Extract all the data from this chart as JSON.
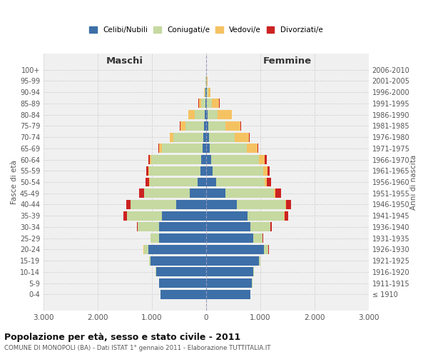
{
  "age_groups": [
    "100+",
    "95-99",
    "90-94",
    "85-89",
    "80-84",
    "75-79",
    "70-74",
    "65-69",
    "60-64",
    "55-59",
    "50-54",
    "45-49",
    "40-44",
    "35-39",
    "30-34",
    "25-29",
    "20-24",
    "15-19",
    "10-14",
    "5-9",
    "0-4"
  ],
  "birth_years": [
    "≤ 1910",
    "1911-1915",
    "1916-1920",
    "1921-1925",
    "1926-1930",
    "1931-1935",
    "1936-1940",
    "1941-1945",
    "1946-1950",
    "1951-1955",
    "1956-1960",
    "1961-1965",
    "1966-1970",
    "1971-1975",
    "1976-1980",
    "1981-1985",
    "1986-1990",
    "1991-1995",
    "1996-2000",
    "2001-2005",
    "2006-2010"
  ],
  "males_celibi": [
    2,
    3,
    8,
    15,
    25,
    35,
    50,
    70,
    90,
    110,
    150,
    300,
    550,
    820,
    870,
    870,
    1070,
    1020,
    920,
    870,
    840
  ],
  "males_coniugati": [
    1,
    5,
    20,
    70,
    185,
    350,
    550,
    750,
    920,
    940,
    890,
    840,
    840,
    640,
    390,
    150,
    80,
    30,
    15,
    3,
    1
  ],
  "males_vedovi": [
    1,
    4,
    15,
    50,
    115,
    90,
    70,
    50,
    25,
    15,
    8,
    4,
    2,
    1,
    1,
    1,
    1,
    1,
    1,
    0,
    0
  ],
  "males_divorziati": [
    0,
    0,
    1,
    2,
    3,
    4,
    6,
    8,
    25,
    45,
    70,
    90,
    80,
    70,
    15,
    8,
    3,
    1,
    0,
    0,
    0
  ],
  "females_nubili": [
    2,
    4,
    10,
    20,
    28,
    38,
    50,
    70,
    90,
    120,
    185,
    360,
    570,
    770,
    820,
    870,
    1070,
    970,
    870,
    850,
    820
  ],
  "females_coniugate": [
    1,
    6,
    25,
    90,
    190,
    315,
    480,
    680,
    880,
    940,
    890,
    890,
    890,
    670,
    370,
    175,
    80,
    30,
    15,
    3,
    1
  ],
  "females_vedove": [
    4,
    15,
    50,
    135,
    260,
    285,
    265,
    205,
    110,
    72,
    42,
    25,
    10,
    5,
    2,
    1,
    1,
    1,
    0,
    0,
    0
  ],
  "females_divorziate": [
    0,
    0,
    1,
    2,
    3,
    4,
    6,
    8,
    35,
    45,
    80,
    110,
    100,
    70,
    15,
    8,
    3,
    1,
    0,
    0,
    0
  ],
  "colors": {
    "celibi_nubili": "#3d6fa8",
    "coniugati_e": "#c5d9a0",
    "vedovi_e": "#f5c262",
    "divorziati_e": "#cc2222"
  },
  "xlim": 3000,
  "xtick_labels": [
    "3.000",
    "2.000",
    "1.000",
    "0",
    "1.000",
    "2.000",
    "3.000"
  ],
  "title": "Popolazione per età, sesso e stato civile - 2011",
  "subtitle": "COMUNE DI MONOPOLI (BA) - Dati ISTAT 1° gennaio 2011 - Elaborazione TUTTITALIA.IT",
  "ylabel_left": "Fasce di età",
  "ylabel_right": "Anni di nascita",
  "maschi_label": "Maschi",
  "femmine_label": "Femmine",
  "legend_labels": [
    "Celibi/Nubili",
    "Coniugati/e",
    "Vedovi/e",
    "Divorziati/e"
  ]
}
